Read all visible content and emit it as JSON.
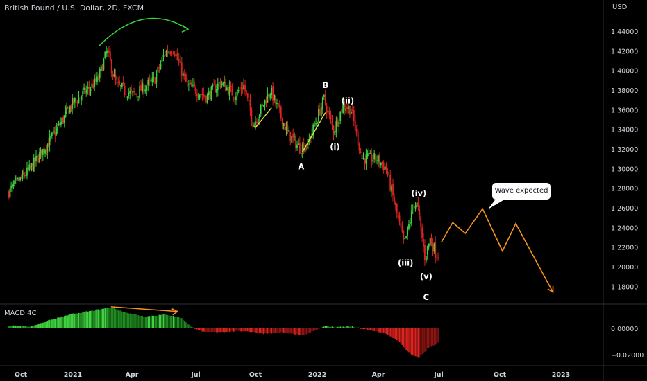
{
  "header": {
    "title": "British Pound / U.S. Dollar, 2D, FXCM",
    "currency": "USD"
  },
  "macd": {
    "label": "MACD 4C"
  },
  "callout": {
    "text": "Wave expected"
  },
  "colors": {
    "up": "#3fd13f",
    "down": "#e0231f",
    "projection": "#f7931a",
    "arrow_green": "#37d437",
    "trendline": "#e8e24a",
    "text": "#d1d4dc"
  },
  "chart_data": [
    {
      "type": "candlestick",
      "title": "British Pound / U.S. Dollar, 2D, FXCM",
      "ylabel": "USD",
      "ylim": [
        1.165,
        1.46
      ],
      "y_ticks": [
        1.18,
        1.2,
        1.22,
        1.24,
        1.26,
        1.28,
        1.3,
        1.32,
        1.34,
        1.36,
        1.38,
        1.4,
        1.42,
        1.44
      ],
      "x_ticks": [
        "Oct",
        "2021",
        "Apr",
        "Jul",
        "Oct",
        "2022",
        "Apr",
        "Jul",
        "Oct",
        "2023"
      ],
      "x_tick_dates": [
        "2020-10-01",
        "2021-01-01",
        "2021-04-01",
        "2021-07-01",
        "2021-10-01",
        "2022-01-01",
        "2022-04-01",
        "2022-07-01",
        "2022-10-01",
        "2023-01-01"
      ],
      "xlim": [
        "2020-09-10",
        "2023-03-01"
      ],
      "price_path": [
        [
          "2020-09-10",
          1.275
        ],
        [
          "2020-10-20",
          1.3
        ],
        [
          "2020-12-01",
          1.335
        ],
        [
          "2021-01-01",
          1.365
        ],
        [
          "2021-02-10",
          1.39
        ],
        [
          "2021-02-24",
          1.42
        ],
        [
          "2021-03-10",
          1.385
        ],
        [
          "2021-04-05",
          1.375
        ],
        [
          "2021-05-05",
          1.39
        ],
        [
          "2021-05-20",
          1.418
        ],
        [
          "2021-06-01",
          1.423
        ],
        [
          "2021-06-20",
          1.385
        ],
        [
          "2021-07-20",
          1.373
        ],
        [
          "2021-08-10",
          1.388
        ],
        [
          "2021-09-01",
          1.375
        ],
        [
          "2021-09-15",
          1.385
        ],
        [
          "2021-09-30",
          1.345
        ],
        [
          "2021-10-25",
          1.38
        ],
        [
          "2021-11-20",
          1.336
        ],
        [
          "2021-12-08",
          1.321
        ],
        [
          "2021-12-20",
          1.325
        ],
        [
          "2022-01-13",
          1.371
        ],
        [
          "2022-01-27",
          1.338
        ],
        [
          "2022-02-10",
          1.365
        ],
        [
          "2022-02-22",
          1.36
        ],
        [
          "2022-03-10",
          1.31
        ],
        [
          "2022-04-01",
          1.31
        ],
        [
          "2022-04-15",
          1.3
        ],
        [
          "2022-05-12",
          1.222
        ],
        [
          "2022-05-27",
          1.265
        ],
        [
          "2022-06-01",
          1.262
        ],
        [
          "2022-06-12",
          1.21
        ],
        [
          "2022-06-20",
          1.228
        ],
        [
          "2022-06-30",
          1.212
        ]
      ],
      "labels": [
        {
          "text": "A",
          "date": "2021-12-08",
          "value": 1.302
        },
        {
          "text": "B",
          "date": "2022-01-13",
          "value": 1.385
        },
        {
          "text": "(i)",
          "date": "2022-01-27",
          "value": 1.322
        },
        {
          "text": "(ii)",
          "date": "2022-02-15",
          "value": 1.369
        },
        {
          "text": "(iii)",
          "date": "2022-05-12",
          "value": 1.204
        },
        {
          "text": "(iv)",
          "date": "2022-06-01",
          "value": 1.275
        },
        {
          "text": "(v)",
          "date": "2022-06-12",
          "value": 1.19
        },
        {
          "text": "C",
          "date": "2022-06-12",
          "value": 1.169
        }
      ],
      "projection": [
        [
          "2022-07-05",
          1.225
        ],
        [
          "2022-07-22",
          1.245
        ],
        [
          "2022-08-10",
          1.234
        ],
        [
          "2022-09-05",
          1.259
        ],
        [
          "2022-10-05",
          1.216
        ],
        [
          "2022-10-25",
          1.244
        ],
        [
          "2022-12-20",
          1.174
        ]
      ],
      "trendlines": [
        {
          "from": [
            "2021-09-30",
            1.341
          ],
          "to": [
            "2021-10-25",
            1.362
          ]
        },
        {
          "from": [
            "2021-12-10",
            1.317
          ],
          "to": [
            "2022-01-13",
            1.357
          ]
        }
      ],
      "green_arc": {
        "from": [
          "2021-02-10",
          1.425
        ],
        "to": [
          "2021-06-20",
          1.442
        ],
        "apex": 1.458
      }
    },
    {
      "type": "histogram",
      "name": "MACD 4C",
      "ylim": [
        -0.032,
        0.022
      ],
      "y_ticks": [
        0.0,
        -0.02
      ],
      "series": [
        {
          "name": "MACD 4C",
          "points": [
            [
              "2020-09-10",
              0.002
            ],
            [
              "2020-10-20",
              0.0015
            ],
            [
              "2020-11-20",
              0.006
            ],
            [
              "2021-01-01",
              0.011
            ],
            [
              "2021-02-01",
              0.0135
            ],
            [
              "2021-02-28",
              0.016
            ],
            [
              "2021-03-20",
              0.0125
            ],
            [
              "2021-04-20",
              0.009
            ],
            [
              "2021-05-20",
              0.0105
            ],
            [
              "2021-06-10",
              0.008
            ],
            [
              "2021-06-25",
              0.001
            ],
            [
              "2021-07-15",
              -0.003
            ],
            [
              "2021-08-15",
              -0.0025
            ],
            [
              "2021-09-15",
              -0.002
            ],
            [
              "2021-10-15",
              -0.004
            ],
            [
              "2021-11-10",
              -0.003
            ],
            [
              "2021-12-10",
              -0.0055
            ],
            [
              "2022-01-10",
              0.0015
            ],
            [
              "2022-01-28",
              0.001
            ],
            [
              "2022-02-20",
              0.0015
            ],
            [
              "2022-03-15",
              -0.001
            ],
            [
              "2022-04-10",
              -0.0035
            ],
            [
              "2022-04-30",
              -0.009
            ],
            [
              "2022-05-20",
              -0.02
            ],
            [
              "2022-06-01",
              -0.0225
            ],
            [
              "2022-06-15",
              -0.015
            ],
            [
              "2022-06-30",
              -0.011
            ]
          ]
        }
      ],
      "divergence_line": {
        "from": [
          "2021-02-28",
          0.0164
        ],
        "to": [
          "2021-06-05",
          0.0128
        ]
      }
    }
  ]
}
